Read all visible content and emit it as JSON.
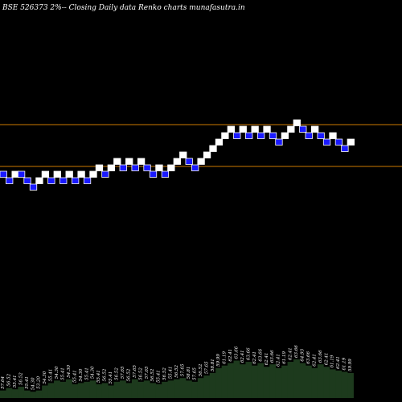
{
  "chart_data": {
    "type": "renko",
    "title": "BSE 526373 2%-- Closing Daily data Renko charts munafasutra.in",
    "background": "#000000",
    "colors": {
      "up_fill": "#ffffff",
      "down_fill": "#1a1aff",
      "down_border": "#ffffff",
      "reference_line": "#cc7a00",
      "volume_fill": "#1d3a1d"
    },
    "ylim": [
      44,
      84
    ],
    "reference_lines": [
      73.0,
      58.0
    ],
    "bricks": [
      {
        "dir": "down",
        "level": 0
      },
      {
        "dir": "down",
        "level": -1
      },
      {
        "dir": "up",
        "level": 0
      },
      {
        "dir": "down",
        "level": 0
      },
      {
        "dir": "down",
        "level": -1
      },
      {
        "dir": "down",
        "level": -2
      },
      {
        "dir": "up",
        "level": -1
      },
      {
        "dir": "up",
        "level": 0
      },
      {
        "dir": "down",
        "level": -1
      },
      {
        "dir": "up",
        "level": 0
      },
      {
        "dir": "down",
        "level": -1
      },
      {
        "dir": "up",
        "level": 0
      },
      {
        "dir": "down",
        "level": -1
      },
      {
        "dir": "up",
        "level": 0
      },
      {
        "dir": "down",
        "level": -1
      },
      {
        "dir": "up",
        "level": 0
      },
      {
        "dir": "up",
        "level": 1
      },
      {
        "dir": "down",
        "level": 0
      },
      {
        "dir": "up",
        "level": 1
      },
      {
        "dir": "up",
        "level": 2
      },
      {
        "dir": "down",
        "level": 1
      },
      {
        "dir": "up",
        "level": 2
      },
      {
        "dir": "down",
        "level": 1
      },
      {
        "dir": "up",
        "level": 2
      },
      {
        "dir": "down",
        "level": 1
      },
      {
        "dir": "down",
        "level": 0
      },
      {
        "dir": "up",
        "level": 1
      },
      {
        "dir": "down",
        "level": 0
      },
      {
        "dir": "up",
        "level": 1
      },
      {
        "dir": "up",
        "level": 2
      },
      {
        "dir": "up",
        "level": 3
      },
      {
        "dir": "down",
        "level": 2
      },
      {
        "dir": "down",
        "level": 1
      },
      {
        "dir": "up",
        "level": 2
      },
      {
        "dir": "up",
        "level": 3
      },
      {
        "dir": "up",
        "level": 4
      },
      {
        "dir": "up",
        "level": 5
      },
      {
        "dir": "up",
        "level": 6
      },
      {
        "dir": "up",
        "level": 7
      },
      {
        "dir": "down",
        "level": 6
      },
      {
        "dir": "up",
        "level": 7
      },
      {
        "dir": "down",
        "level": 6
      },
      {
        "dir": "up",
        "level": 7
      },
      {
        "dir": "down",
        "level": 6
      },
      {
        "dir": "up",
        "level": 7
      },
      {
        "dir": "down",
        "level": 6
      },
      {
        "dir": "down",
        "level": 5
      },
      {
        "dir": "up",
        "level": 6
      },
      {
        "dir": "up",
        "level": 7
      },
      {
        "dir": "up",
        "level": 8
      },
      {
        "dir": "down",
        "level": 7
      },
      {
        "dir": "down",
        "level": 6
      },
      {
        "dir": "up",
        "level": 7
      },
      {
        "dir": "down",
        "level": 6
      },
      {
        "dir": "down",
        "level": 5
      },
      {
        "dir": "up",
        "level": 6
      },
      {
        "dir": "down",
        "level": 5
      },
      {
        "dir": "down",
        "level": 4
      },
      {
        "dir": "up",
        "level": 5
      }
    ],
    "brick_prices": [
      "57.64",
      "56.52",
      "55.41",
      "56.52",
      "55.41",
      "54.30",
      "53.20",
      "54.30",
      "55.41",
      "54.30",
      "55.41",
      "54.30",
      "55.41",
      "54.30",
      "55.41",
      "54.30",
      "55.41",
      "56.52",
      "55.41",
      "56.52",
      "57.65",
      "56.52",
      "57.65",
      "56.52",
      "57.65",
      "56.52",
      "55.41",
      "56.52",
      "55.41",
      "56.52",
      "57.65",
      "58.81",
      "57.65",
      "56.52",
      "57.65",
      "58.81",
      "59.99",
      "61.19",
      "62.41",
      "63.66",
      "62.41",
      "63.66",
      "62.41",
      "63.66",
      "62.41",
      "63.66",
      "62.41",
      "61.19",
      "62.41",
      "63.66",
      "64.93",
      "63.66",
      "62.41",
      "63.66",
      "62.41",
      "61.19",
      "62.41",
      "61.19",
      "59.99"
    ],
    "volume": [
      6,
      8,
      7,
      9,
      6,
      5,
      6,
      10,
      12,
      14,
      13,
      15,
      11,
      12,
      13,
      14,
      11,
      12,
      10,
      13,
      14,
      12,
      15,
      13,
      14,
      12,
      11,
      13,
      14,
      15,
      16,
      14,
      13,
      16,
      18,
      20,
      24,
      26,
      28,
      30,
      27,
      29,
      26,
      28,
      25,
      27,
      24,
      26,
      29,
      31,
      28,
      26,
      24,
      27,
      25,
      23,
      22,
      21,
      20
    ]
  }
}
